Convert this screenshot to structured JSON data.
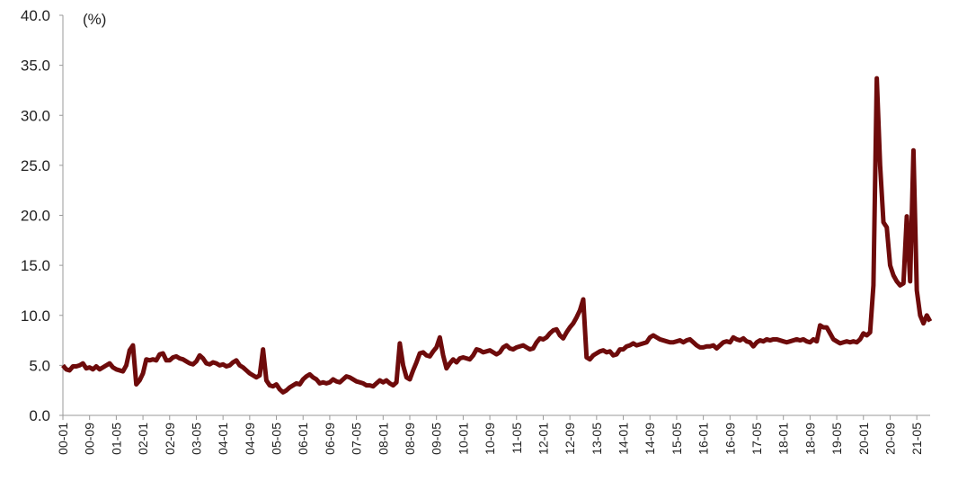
{
  "chart_data": {
    "type": "line",
    "y_unit": "(%)",
    "color": "#6e0b0b",
    "categories": [
      "00-01",
      null,
      null,
      null,
      null,
      null,
      null,
      null,
      "00-09",
      null,
      null,
      null,
      null,
      null,
      null,
      null,
      "01-05",
      null,
      null,
      null,
      null,
      null,
      null,
      null,
      "02-01",
      null,
      null,
      null,
      null,
      null,
      null,
      null,
      "02-09",
      null,
      null,
      null,
      null,
      null,
      null,
      null,
      "03-05",
      null,
      null,
      null,
      null,
      null,
      null,
      null,
      "04-01",
      null,
      null,
      null,
      null,
      null,
      null,
      null,
      "04-09",
      null,
      null,
      null,
      null,
      null,
      null,
      null,
      "05-05",
      null,
      null,
      null,
      null,
      null,
      null,
      null,
      "06-01",
      null,
      null,
      null,
      null,
      null,
      null,
      null,
      "06-09",
      null,
      null,
      null,
      null,
      null,
      null,
      null,
      "07-05",
      null,
      null,
      null,
      null,
      null,
      null,
      null,
      "08-01",
      null,
      null,
      null,
      null,
      null,
      null,
      null,
      "08-09",
      null,
      null,
      null,
      null,
      null,
      null,
      null,
      "09-05",
      null,
      null,
      null,
      null,
      null,
      null,
      null,
      "10-01",
      null,
      null,
      null,
      null,
      null,
      null,
      null,
      "10-09",
      null,
      null,
      null,
      null,
      null,
      null,
      null,
      "11-05",
      null,
      null,
      null,
      null,
      null,
      null,
      null,
      "12-01",
      null,
      null,
      null,
      null,
      null,
      null,
      null,
      "12-09",
      null,
      null,
      null,
      null,
      null,
      null,
      null,
      "13-05",
      null,
      null,
      null,
      null,
      null,
      null,
      null,
      "14-01",
      null,
      null,
      null,
      null,
      null,
      null,
      null,
      "14-09",
      null,
      null,
      null,
      null,
      null,
      null,
      null,
      "15-05",
      null,
      null,
      null,
      null,
      null,
      null,
      null,
      "16-01",
      null,
      null,
      null,
      null,
      null,
      null,
      null,
      "16-09",
      null,
      null,
      null,
      null,
      null,
      null,
      null,
      "17-05",
      null,
      null,
      null,
      null,
      null,
      null,
      null,
      "18-01",
      null,
      null,
      null,
      null,
      null,
      null,
      null,
      "18-09",
      null,
      null,
      null,
      null,
      null,
      null,
      null,
      "19-05",
      null,
      null,
      null,
      null,
      null,
      null,
      null,
      "20-01",
      null,
      null,
      null,
      null,
      null,
      null,
      null,
      "20-09",
      null,
      null,
      null,
      null,
      null,
      null,
      null,
      "21-05",
      null,
      null,
      null,
      null
    ],
    "values": [
      5.0,
      4.6,
      4.5,
      4.9,
      4.9,
      5.0,
      5.2,
      4.7,
      4.8,
      4.6,
      4.9,
      4.6,
      4.8,
      5.0,
      5.2,
      4.8,
      4.6,
      4.5,
      4.4,
      5.0,
      6.5,
      7.0,
      3.1,
      3.5,
      4.2,
      5.6,
      5.5,
      5.6,
      5.5,
      6.1,
      6.2,
      5.5,
      5.5,
      5.8,
      5.9,
      5.7,
      5.6,
      5.4,
      5.2,
      5.1,
      5.4,
      6.0,
      5.7,
      5.2,
      5.1,
      5.3,
      5.2,
      5.0,
      5.1,
      4.9,
      5.0,
      5.3,
      5.5,
      5.0,
      4.8,
      4.5,
      4.2,
      4.0,
      3.8,
      4.0,
      6.6,
      3.5,
      3.0,
      2.9,
      3.1,
      2.6,
      2.3,
      2.5,
      2.8,
      3.0,
      3.2,
      3.1,
      3.6,
      3.9,
      4.1,
      3.8,
      3.6,
      3.2,
      3.3,
      3.2,
      3.3,
      3.6,
      3.4,
      3.3,
      3.6,
      3.9,
      3.8,
      3.6,
      3.4,
      3.3,
      3.2,
      3.0,
      3.0,
      2.9,
      3.2,
      3.5,
      3.3,
      3.5,
      3.2,
      3.0,
      3.3,
      7.2,
      5.0,
      3.8,
      3.6,
      4.5,
      5.3,
      6.2,
      6.3,
      6.0,
      5.9,
      6.4,
      6.8,
      7.8,
      6.0,
      4.7,
      5.2,
      5.6,
      5.3,
      5.7,
      5.8,
      5.7,
      5.6,
      6.0,
      6.6,
      6.5,
      6.3,
      6.4,
      6.5,
      6.3,
      6.1,
      6.3,
      6.8,
      7.0,
      6.7,
      6.6,
      6.8,
      6.9,
      7.0,
      6.8,
      6.6,
      6.7,
      7.3,
      7.7,
      7.6,
      7.8,
      8.2,
      8.5,
      8.6,
      8.0,
      7.7,
      8.3,
      8.8,
      9.2,
      9.8,
      10.5,
      11.6,
      5.8,
      5.6,
      6.0,
      6.2,
      6.4,
      6.5,
      6.3,
      6.4,
      6.0,
      6.1,
      6.6,
      6.6,
      6.9,
      7.0,
      7.2,
      7.0,
      7.1,
      7.2,
      7.3,
      7.8,
      8.0,
      7.8,
      7.6,
      7.5,
      7.4,
      7.3,
      7.3,
      7.4,
      7.5,
      7.3,
      7.5,
      7.6,
      7.3,
      7.0,
      6.8,
      6.8,
      6.9,
      6.9,
      7.0,
      6.7,
      7.0,
      7.3,
      7.4,
      7.3,
      7.8,
      7.6,
      7.5,
      7.7,
      7.4,
      7.3,
      6.9,
      7.3,
      7.5,
      7.4,
      7.6,
      7.5,
      7.6,
      7.6,
      7.5,
      7.4,
      7.3,
      7.4,
      7.5,
      7.6,
      7.5,
      7.6,
      7.4,
      7.3,
      7.6,
      7.4,
      9.0,
      8.8,
      8.8,
      8.2,
      7.6,
      7.4,
      7.2,
      7.3,
      7.4,
      7.3,
      7.4,
      7.3,
      7.6,
      8.2,
      8.0,
      8.3,
      13.0,
      33.7,
      25.0,
      19.3,
      18.8,
      15.0,
      14.0,
      13.4,
      13.0,
      13.2,
      19.9,
      13.4,
      26.5,
      12.5,
      10.0,
      9.2,
      10.0,
      9.4
    ],
    "ylim": [
      0,
      40
    ],
    "yticks": [
      {
        "value": 0,
        "label": "0.0"
      },
      {
        "value": 5,
        "label": "5.0"
      },
      {
        "value": 10,
        "label": "10.0"
      },
      {
        "value": 15,
        "label": "15.0"
      },
      {
        "value": 20,
        "label": "20.0"
      },
      {
        "value": 25,
        "label": "25.0"
      },
      {
        "value": 30,
        "label": "30.0"
      },
      {
        "value": 35,
        "label": "35.0"
      },
      {
        "value": 40,
        "label": "40.0"
      }
    ]
  }
}
